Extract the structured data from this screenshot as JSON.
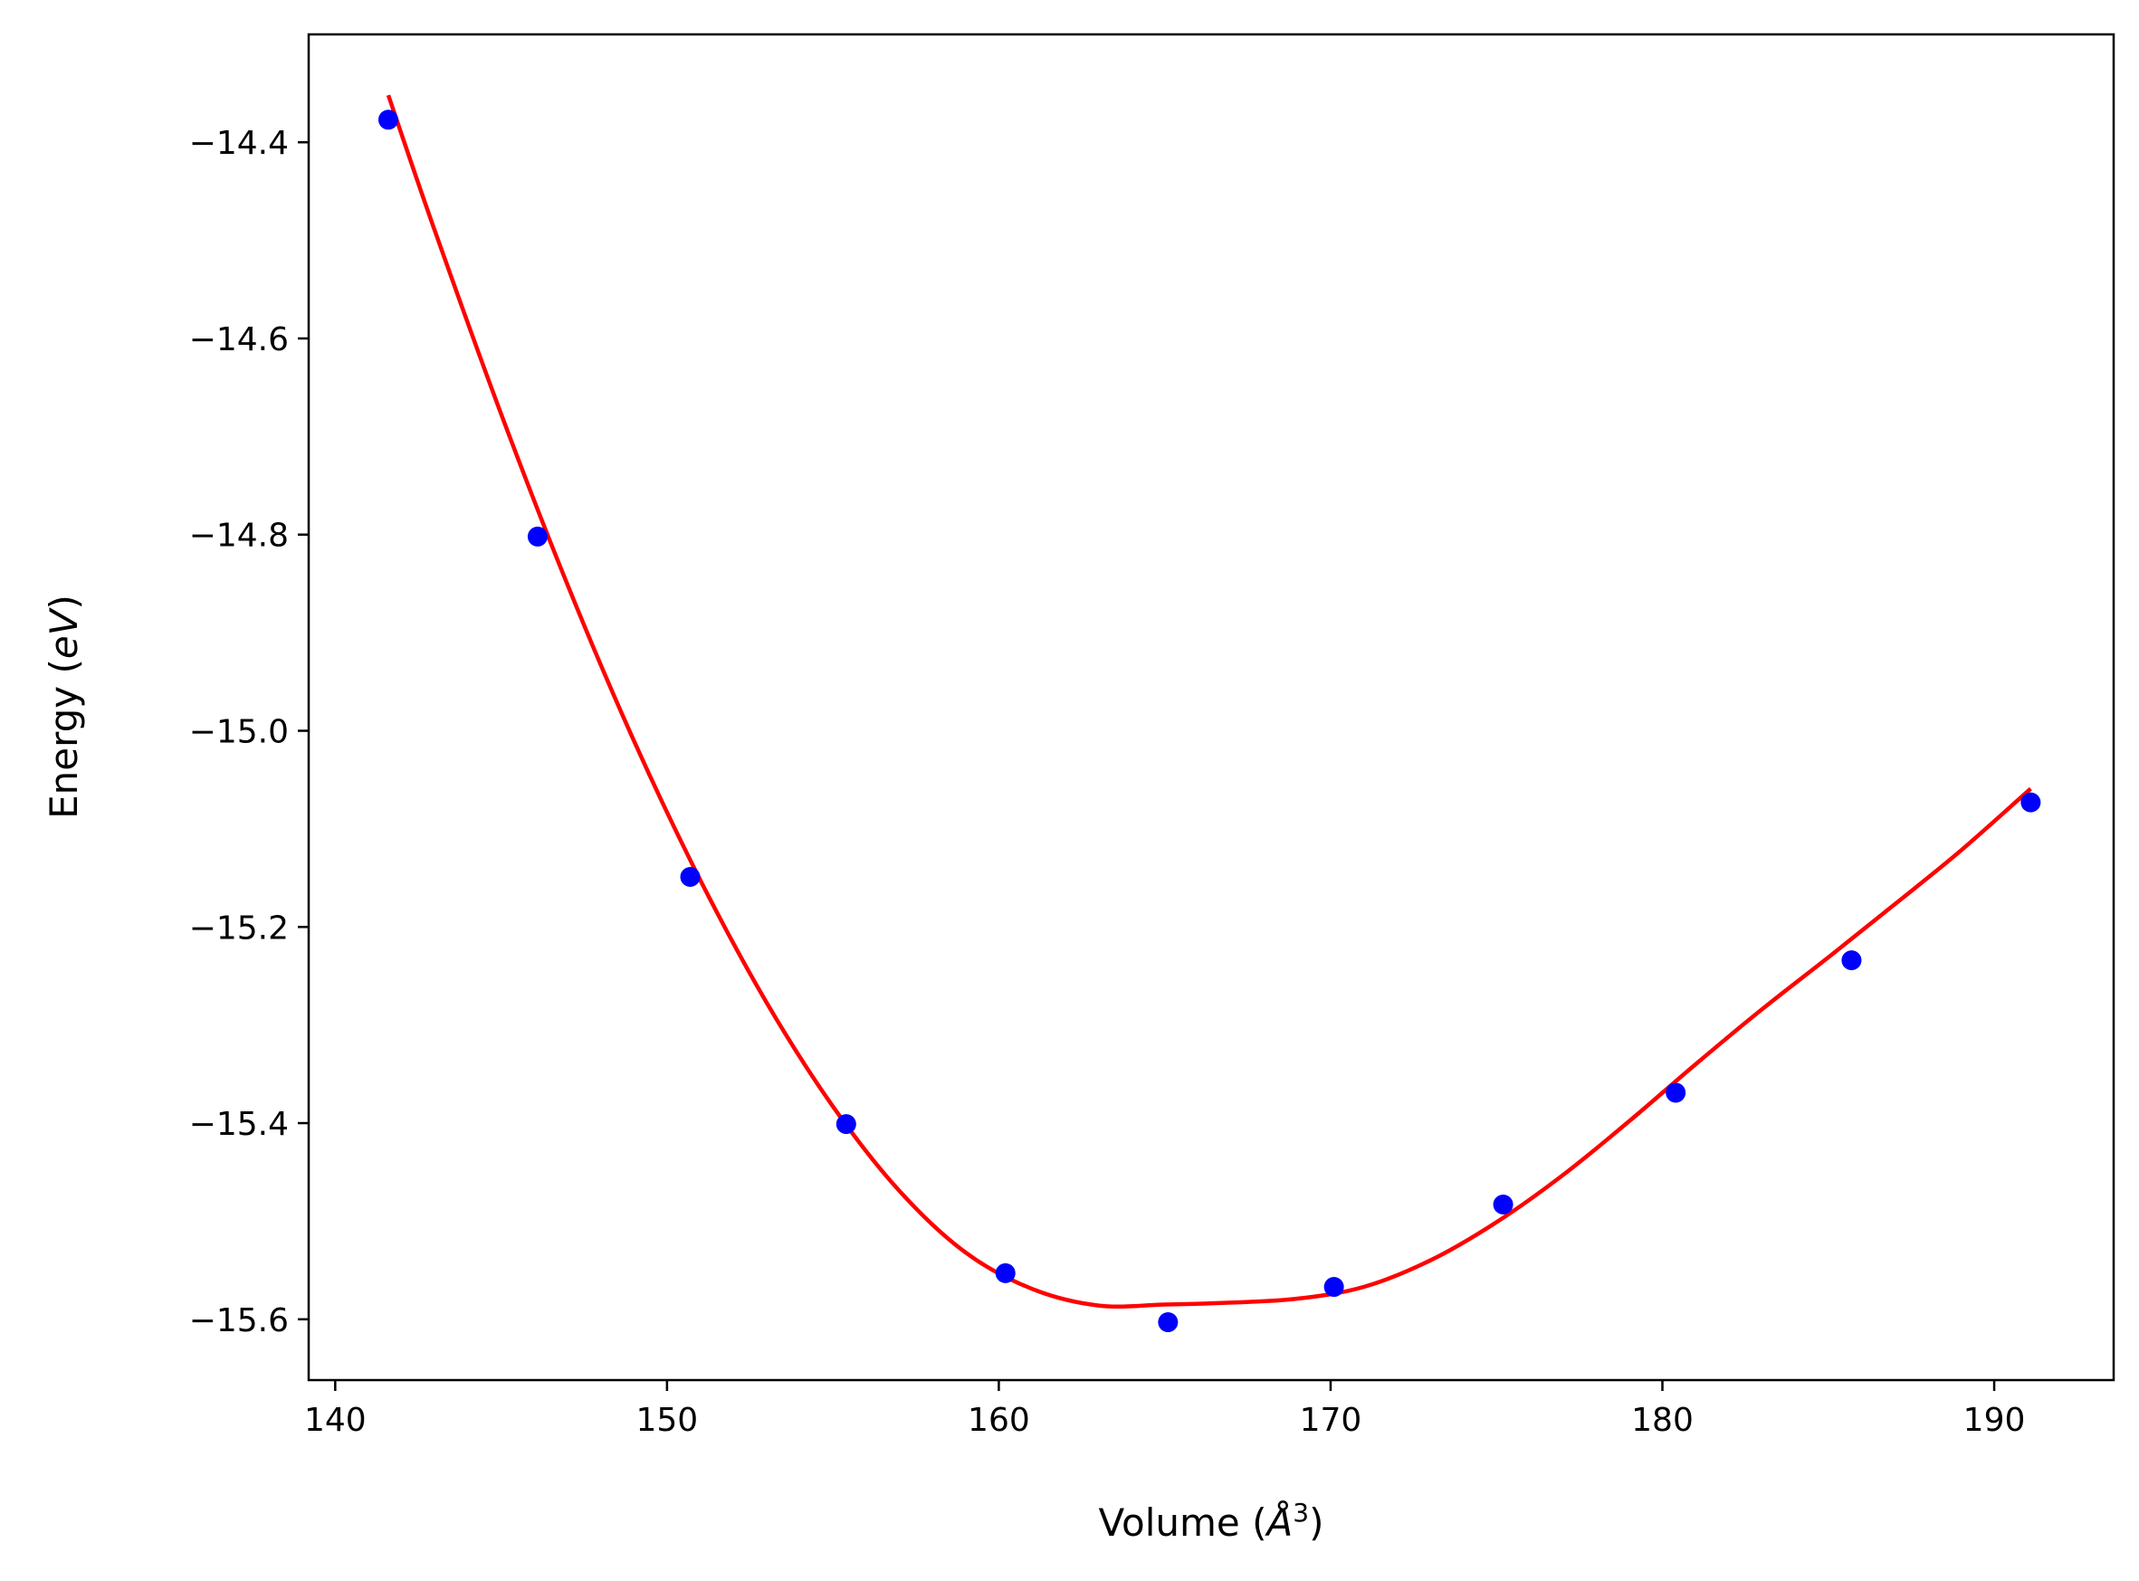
{
  "chart_data": {
    "type": "scatter",
    "title": "",
    "xlabel": "Volume (",
    "xlabel_unit": "Å",
    "xlabel_unit_sup": "3",
    "xlabel_close": ")",
    "ylabel": "Energy (",
    "ylabel_unit": "eV",
    "ylabel_close": ")",
    "xlim": [
      139.2,
      193.6
    ],
    "ylim": [
      -15.662,
      -14.29
    ],
    "xticks": [
      140,
      150,
      160,
      170,
      180,
      190
    ],
    "xtick_labels": [
      "140",
      "150",
      "160",
      "170",
      "180",
      "190"
    ],
    "yticks": [
      -14.4,
      -14.6,
      -14.8,
      -15.0,
      -15.2,
      -15.4,
      -15.6
    ],
    "ytick_labels": [
      "−14.4",
      "−14.6",
      "−14.8",
      "−15.0",
      "−15.2",
      "−15.4",
      "−15.6"
    ],
    "grid": false,
    "series": [
      {
        "kind": "points",
        "color": "#0000ff",
        "x": [
          141.6,
          146.1,
          150.7,
          155.4,
          160.2,
          165.1,
          170.1,
          175.2,
          180.4,
          185.7,
          191.1
        ],
        "y": [
          -14.377,
          -14.802,
          -15.149,
          -15.401,
          -15.553,
          -15.603,
          -15.567,
          -15.483,
          -15.369,
          -15.234,
          -15.073
        ]
      },
      {
        "kind": "fit-curve",
        "color": "#ff0000",
        "x": [
          141.6,
          143.0,
          145.0,
          147.0,
          149.0,
          151.0,
          153.0,
          155.0,
          157.0,
          159.0,
          161.0,
          163.0,
          165.0,
          167.0,
          169.0,
          171.0,
          173.0,
          175.0,
          177.0,
          179.0,
          181.0,
          183.0,
          185.0,
          187.0,
          189.0,
          191.1
        ],
        "y": [
          -14.352,
          -14.49,
          -14.677,
          -14.851,
          -15.01,
          -15.152,
          -15.277,
          -15.383,
          -15.469,
          -15.532,
          -15.569,
          -15.586,
          -15.585,
          -15.583,
          -15.579,
          -15.567,
          -15.54,
          -15.501,
          -15.453,
          -15.398,
          -15.34,
          -15.284,
          -15.231,
          -15.177,
          -15.122,
          -15.059
        ]
      }
    ]
  }
}
